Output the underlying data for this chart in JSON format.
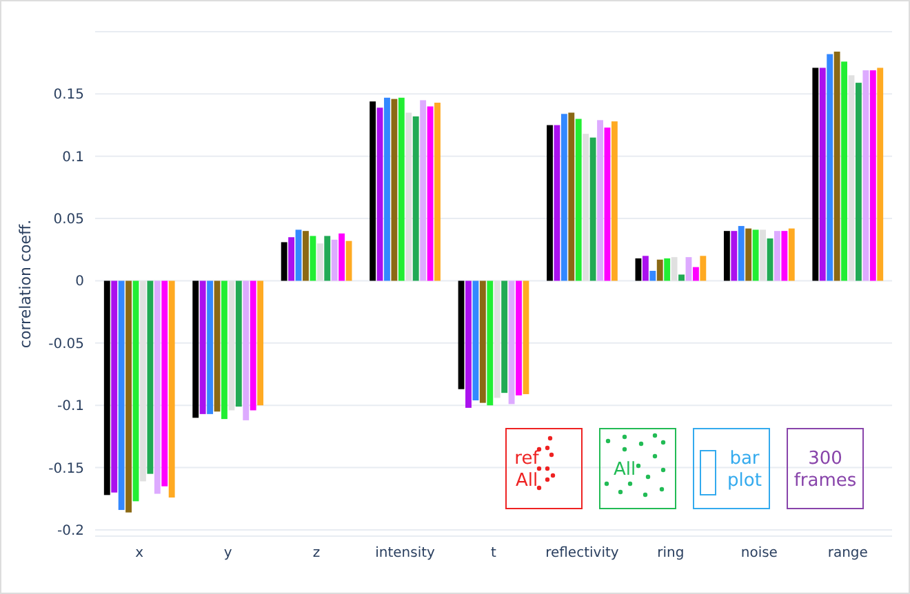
{
  "chart_data": {
    "type": "bar",
    "ylabel": "correlation coeff.",
    "categories": [
      "x",
      "y",
      "z",
      "intensity",
      "t",
      "reflectivity",
      "ring",
      "noise",
      "range"
    ],
    "series": [
      {
        "color": "#000000",
        "values": [
          -0.172,
          -0.11,
          0.031,
          0.144,
          -0.087,
          0.125,
          0.018,
          0.04,
          0.171
        ]
      },
      {
        "color": "#aa11ee",
        "values": [
          -0.17,
          -0.107,
          0.035,
          0.139,
          -0.102,
          0.125,
          0.02,
          0.04,
          0.171
        ]
      },
      {
        "color": "#3388ff",
        "values": [
          -0.184,
          -0.107,
          0.041,
          0.147,
          -0.096,
          0.134,
          0.008,
          0.044,
          0.182
        ]
      },
      {
        "color": "#8b6914",
        "values": [
          -0.186,
          -0.105,
          0.04,
          0.146,
          -0.098,
          0.135,
          0.017,
          0.042,
          0.184
        ]
      },
      {
        "color": "#22ee33",
        "values": [
          -0.177,
          -0.111,
          0.036,
          0.147,
          -0.1,
          0.13,
          0.018,
          0.041,
          0.176
        ]
      },
      {
        "color": "#e0e0e0",
        "values": [
          -0.161,
          -0.104,
          0.03,
          0.135,
          -0.094,
          0.118,
          0.019,
          0.041,
          0.165
        ]
      },
      {
        "color": "#22aa55",
        "values": [
          -0.155,
          -0.101,
          0.036,
          0.132,
          -0.09,
          0.115,
          0.005,
          0.034,
          0.159
        ]
      },
      {
        "color": "#ddaaff",
        "values": [
          -0.171,
          -0.112,
          0.033,
          0.145,
          -0.099,
          0.129,
          0.019,
          0.04,
          0.169
        ]
      },
      {
        "color": "#ff00ff",
        "values": [
          -0.165,
          -0.104,
          0.038,
          0.14,
          -0.092,
          0.123,
          0.011,
          0.04,
          0.169
        ]
      },
      {
        "color": "#ffaa22",
        "values": [
          -0.174,
          -0.1,
          0.032,
          0.143,
          -0.091,
          0.128,
          0.02,
          0.042,
          0.171
        ]
      }
    ],
    "ylim": [
      -0.205,
      0.2
    ],
    "yticks": [
      -0.2,
      -0.15,
      -0.1,
      -0.05,
      0,
      0.05,
      0.1,
      0.15
    ],
    "grid": "y",
    "annotations": [
      "ref All",
      "All",
      "bar plot",
      "300 frames"
    ]
  }
}
